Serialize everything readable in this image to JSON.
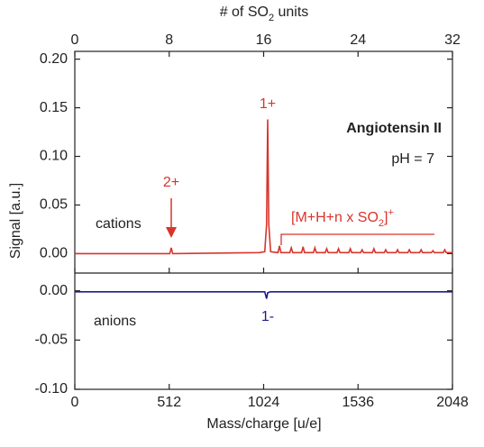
{
  "chart_data": [
    {
      "type": "line",
      "x2_label": [
        "# of SO",
        "2",
        " units"
      ],
      "x2lim": [
        0,
        32
      ],
      "x2ticks": [
        0,
        8,
        16,
        24,
        32
      ],
      "xlim": [
        0,
        2048
      ],
      "ylim": [
        -0.02,
        0.208
      ],
      "yticks": [
        {
          "value": 0,
          "label": "0.00"
        },
        0.05,
        {
          "value": 0.1,
          "label": "0.10"
        },
        0.15,
        {
          "value": 0.2,
          "label": "0.20"
        }
      ],
      "annotations": [
        "Angiotensin II",
        "pH = 7",
        "1+",
        "2+",
        "cations",
        [
          "[M+H+n x SO",
          "2",
          "]",
          "+"
        ]
      ],
      "series": [
        {
          "color": "#d9342b",
          "x": [
            0,
            400,
            515,
            523,
            531,
            1000,
            1030,
            1040,
            1046,
            1052,
            1062,
            1102,
            1110,
            1118,
            1166,
            1174,
            1182,
            1230,
            1238,
            1246,
            1294,
            1302,
            1310,
            1358,
            1366,
            1374,
            1422,
            1430,
            1438,
            1486,
            1494,
            1502,
            1550,
            1558,
            1566,
            1614,
            1622,
            1630,
            1678,
            1686,
            1694,
            1742,
            1750,
            1758,
            1806,
            1814,
            1822,
            1870,
            1878,
            1886,
            1934,
            1942,
            1950,
            1998,
            2006,
            2014,
            2048
          ],
          "values": [
            0,
            0,
            0,
            0.006,
            0,
            0.001,
            0.002,
            0.03,
            0.138,
            0.03,
            0.002,
            0.001,
            0.008,
            0.001,
            0.001,
            0.006,
            0.001,
            0.001,
            0.007,
            0.001,
            0.001,
            0.006,
            0.001,
            0.001,
            0.005,
            0.001,
            0.001,
            0.005,
            0.001,
            0.001,
            0.005,
            0.001,
            0.001,
            0.004,
            0.001,
            0.001,
            0.005,
            0.001,
            0.001,
            0.004,
            0.001,
            0.001,
            0.004,
            0.001,
            0.001,
            0.004,
            0.001,
            0.001,
            0.004,
            0.001,
            0.001,
            0.003,
            0.001,
            0.001,
            0.004,
            0.001,
            0.001
          ]
        }
      ]
    },
    {
      "type": "line",
      "x_label": "Mass/charge [u/e]",
      "y_label": "Signal [a.u.]",
      "xlim": [
        0,
        2048
      ],
      "xticks": [
        0,
        512,
        1024,
        1536,
        2048
      ],
      "ylim": [
        -0.1,
        0.018
      ],
      "yticks": [
        {
          "value": 0,
          "label": "0.00"
        },
        -0.05,
        {
          "value": -0.1,
          "label": "-0.10"
        }
      ],
      "annotations": [
        "anions",
        "1-"
      ],
      "series": [
        {
          "color": "#1c1c8a",
          "x": [
            0,
            1030,
            1040,
            1046,
            1060,
            2048
          ],
          "values": [
            -0.001,
            -0.001,
            -0.008,
            -0.002,
            -0.001,
            -0.001
          ]
        }
      ]
    }
  ]
}
